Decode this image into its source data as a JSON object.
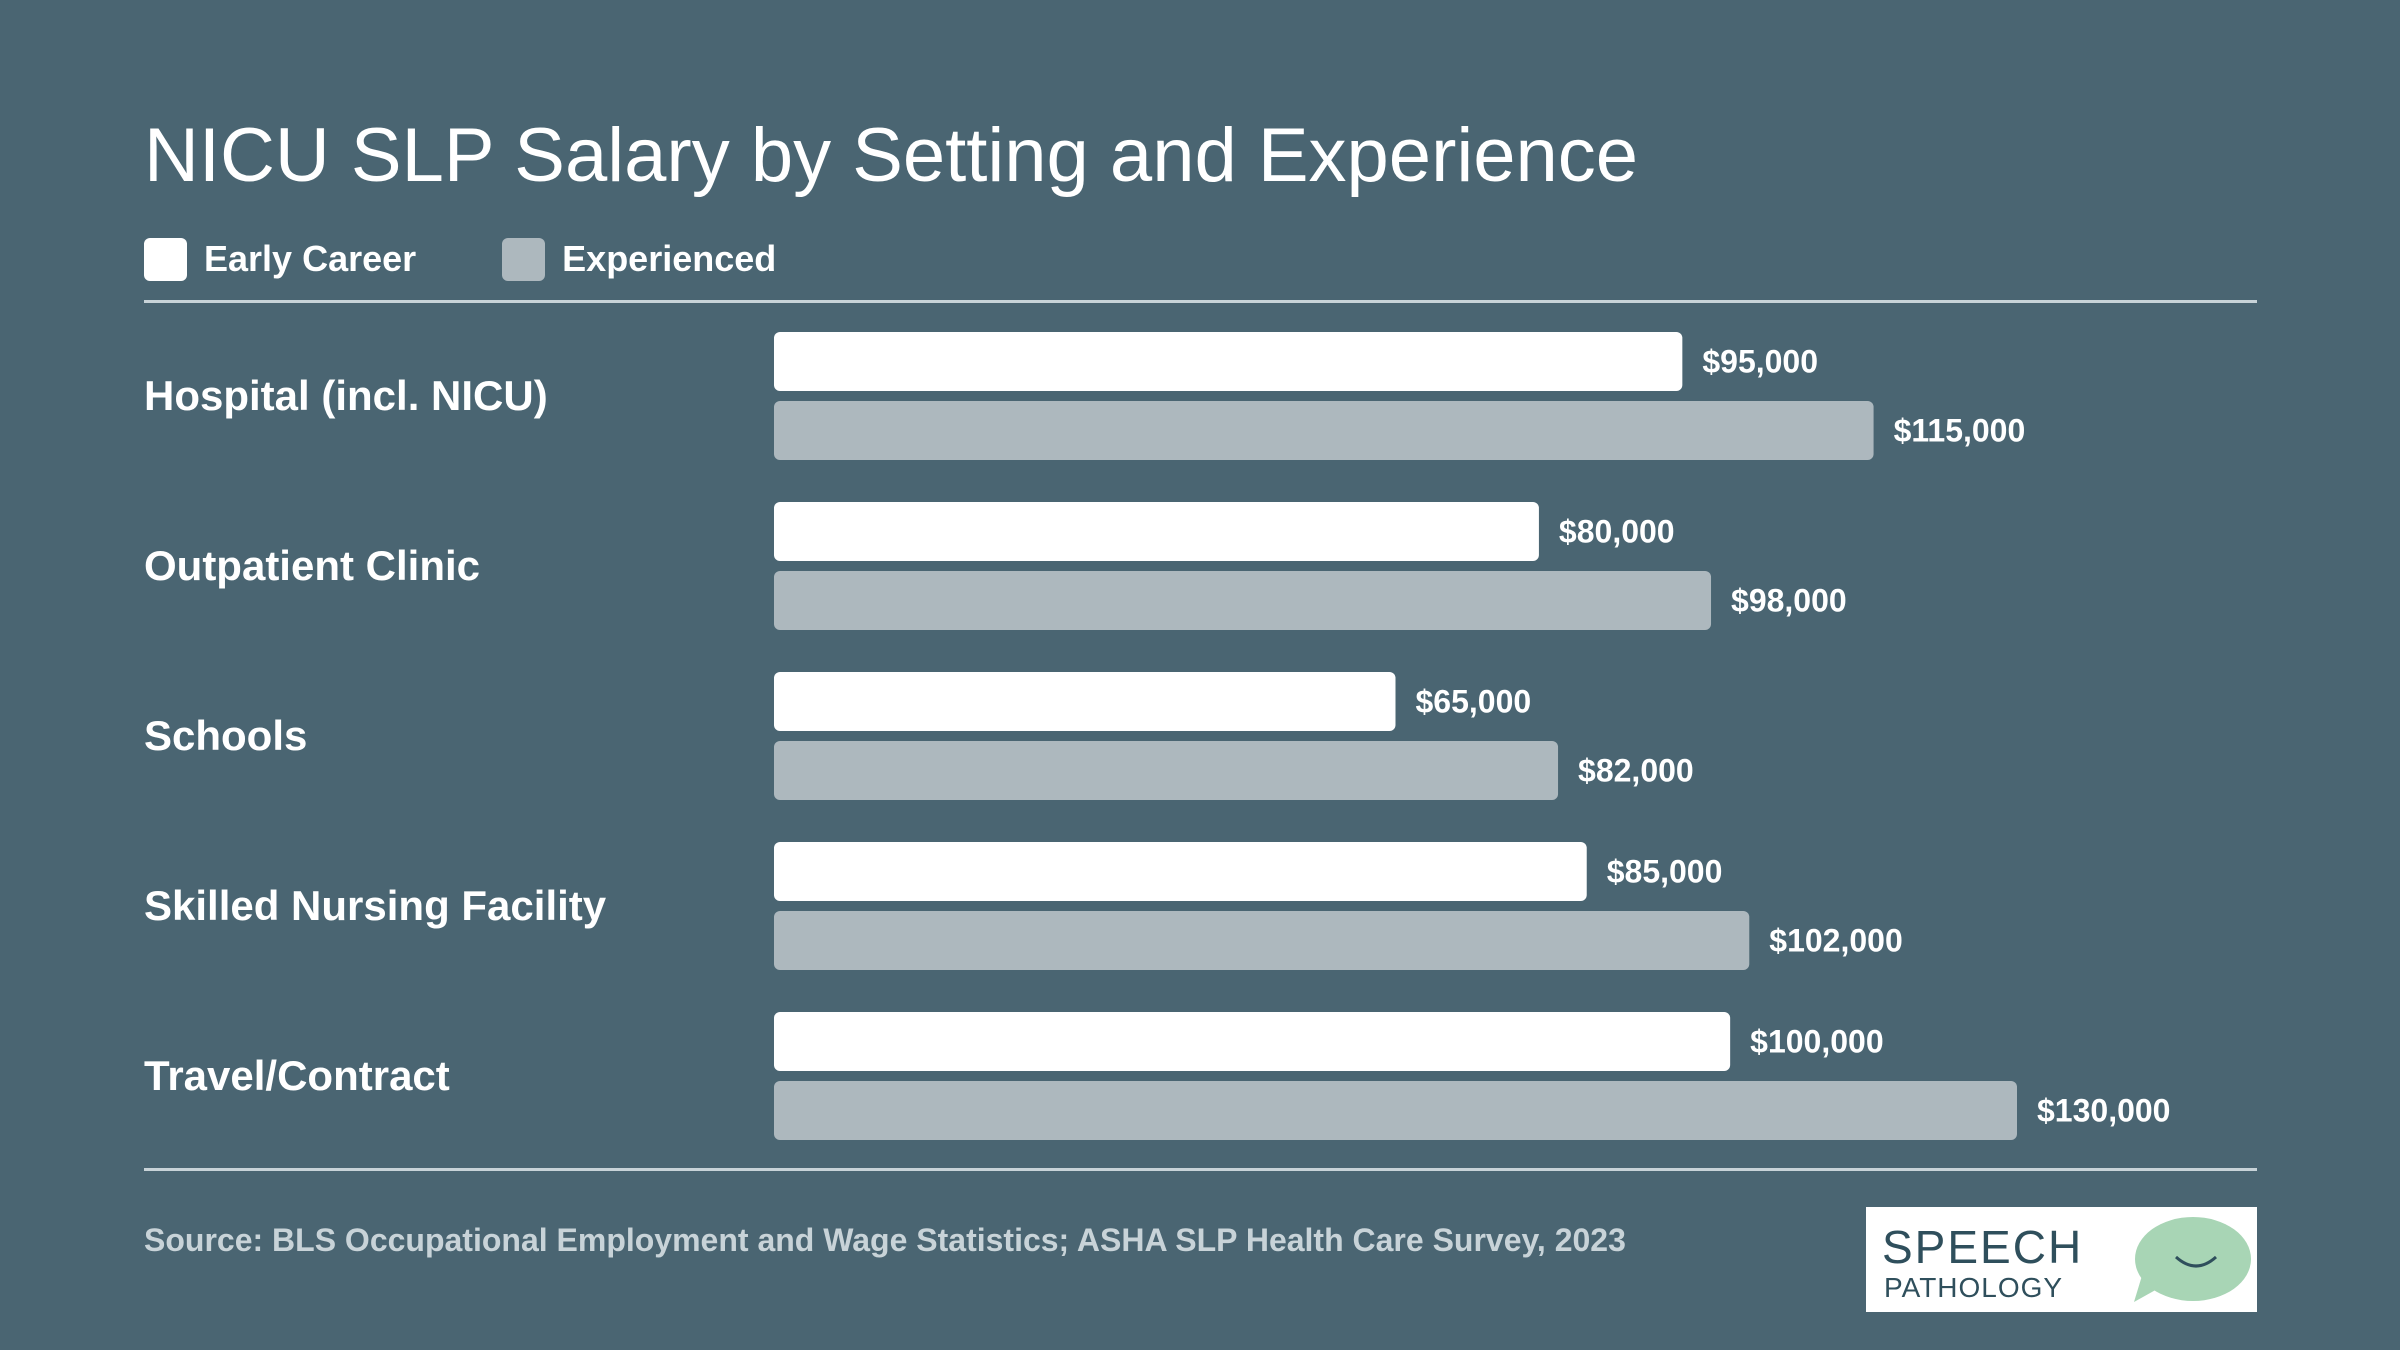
{
  "title": "NICU SLP Salary by Setting and Experience",
  "legend": {
    "items": [
      {
        "label": "Early Career",
        "color": "#ffffff"
      },
      {
        "label": "Experienced",
        "color": "#adb8be"
      }
    ]
  },
  "chart_data": {
    "type": "bar",
    "orientation": "horizontal",
    "title": "NICU SLP Salary by Setting and Experience",
    "categories": [
      "Hospital (incl. NICU)",
      "Outpatient Clinic",
      "Schools",
      "Skilled Nursing Facility",
      "Travel/Contract"
    ],
    "series": [
      {
        "name": "Early Career",
        "values": [
          95000,
          80000,
          65000,
          85000,
          100000
        ],
        "labels": [
          "$95,000",
          "$80,000",
          "$65,000",
          "$85,000",
          "$100,000"
        ],
        "color": "#ffffff"
      },
      {
        "name": "Experienced",
        "values": [
          115000,
          98000,
          82000,
          102000,
          130000
        ],
        "labels": [
          "$115,000",
          "$98,000",
          "$82,000",
          "$102,000",
          "$130,000"
        ],
        "color": "#adb8be"
      }
    ],
    "xlim": [
      0,
      130000
    ],
    "grid": false,
    "legend_position": "top-left"
  },
  "footer": {
    "source": "Source: BLS Occupational Employment and Wage Statistics; ASHA SLP Health Care Survey, 2023"
  },
  "logo": {
    "line1": "SPEECH",
    "line2": "PATHOLOGY",
    "color": "#2f4f5c",
    "accent": "#a8d5b5"
  },
  "colors": {
    "background": "#4a6572",
    "rule": "#c8d3d8"
  }
}
